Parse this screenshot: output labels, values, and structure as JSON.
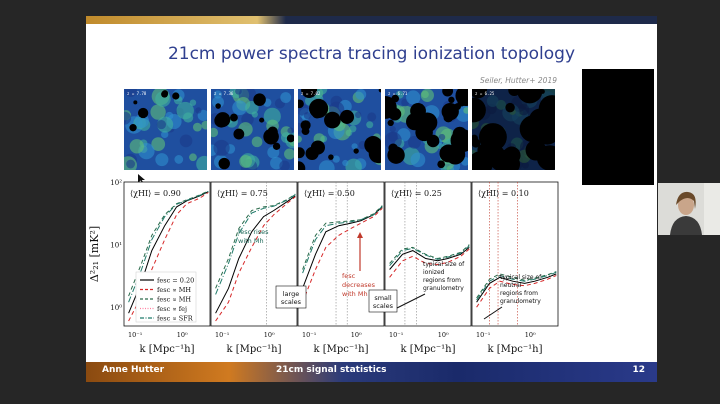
{
  "slide": {
    "title": "21cm power spectra tracing ionization topology",
    "citation": "Seiler, Hutter+ 2019",
    "footer": {
      "author": "Anne Hutter",
      "topic": "21cm signal statistics",
      "page": "12"
    }
  },
  "maps": [
    {
      "label": "z = 7.78"
    },
    {
      "label": "z = 7.36"
    },
    {
      "label": "z = 7.02"
    },
    {
      "label": "z = 6.71"
    },
    {
      "label": "z = 6.25"
    }
  ],
  "chart_data": {
    "type": "line",
    "ylabel": "Δ²₂₁ [mK²]",
    "xlabel": "k [Mpc⁻¹h]",
    "x_scale": "log",
    "y_scale": "log",
    "xlim": [
      0.1,
      3
    ],
    "ylim": [
      0.5,
      100
    ],
    "y_ticks": [
      "10²",
      "10¹",
      "10⁰"
    ],
    "x_ticks": [
      "10⁻¹",
      "10⁰"
    ],
    "legend": [
      {
        "label": "fesc = 0.20",
        "color": "#000000",
        "dash": "solid"
      },
      {
        "label": "fesc ∝ MH",
        "color": "#d62728",
        "dash": "dashed"
      },
      {
        "label": "fesc ∝ MH",
        "color": "#2a6a4a",
        "dash": "dashed"
      },
      {
        "label": "fesc ∝ fej",
        "color": "#ff7fa0",
        "dash": "dotted"
      },
      {
        "label": "fesc ∝ SFR",
        "color": "#1f7a6a",
        "dash": "dashdot"
      }
    ],
    "panels": [
      {
        "label": "⟨χHI⟩ = 0.90",
        "series": [
          {
            "color": "#000000",
            "dash": "",
            "x": [
              0.12,
              0.2,
              0.3,
              0.5,
              0.8,
              1.2,
              2,
              2.8
            ],
            "y": [
              0.8,
              2.5,
              8,
              20,
              40,
              50,
              60,
              70
            ]
          },
          {
            "color": "#d62728",
            "dash": "4,3",
            "x": [
              0.12,
              0.2,
              0.3,
              0.5,
              0.8,
              1.2,
              2,
              2.8
            ],
            "y": [
              0.6,
              1.5,
              4,
              12,
              30,
              45,
              55,
              68
            ]
          },
          {
            "color": "#2a6a4a",
            "dash": "4,3",
            "x": [
              0.12,
              0.2,
              0.3,
              0.5,
              0.8,
              1.2,
              2,
              2.8
            ],
            "y": [
              1.5,
              5,
              14,
              30,
              45,
              52,
              62,
              72
            ]
          },
          {
            "color": "#1f7a6a",
            "dash": "6,2,1,2",
            "x": [
              0.12,
              0.2,
              0.3,
              0.5,
              0.8,
              1.2,
              2,
              2.8
            ],
            "y": [
              1.2,
              4,
              12,
              28,
              44,
              51,
              61,
              71
            ]
          }
        ]
      },
      {
        "label": "⟨χHI⟩ = 0.75",
        "series": [
          {
            "color": "#000000",
            "dash": "",
            "x": [
              0.12,
              0.2,
              0.3,
              0.5,
              0.8,
              1.2,
              2,
              2.8
            ],
            "y": [
              0.8,
              2,
              6,
              16,
              28,
              35,
              48,
              60
            ]
          },
          {
            "color": "#d62728",
            "dash": "4,3",
            "x": [
              0.12,
              0.2,
              0.3,
              0.5,
              0.8,
              1.2,
              2,
              2.8
            ],
            "y": [
              0.6,
              1.2,
              3.5,
              9,
              20,
              30,
              45,
              58
            ]
          },
          {
            "color": "#2a6a4a",
            "dash": "4,3",
            "x": [
              0.12,
              0.2,
              0.3,
              0.5,
              0.8,
              1.2,
              2,
              2.8
            ],
            "y": [
              2,
              6,
              18,
              35,
              40,
              42,
              52,
              64
            ]
          },
          {
            "color": "#1f7a6a",
            "dash": "6,2,1,2",
            "x": [
              0.12,
              0.2,
              0.3,
              0.5,
              0.8,
              1.2,
              2,
              2.8
            ],
            "y": [
              1.6,
              5,
              15,
              32,
              38,
              41,
              51,
              63
            ]
          }
        ]
      },
      {
        "label": "⟨χHI⟩ = 0.50",
        "series": [
          {
            "color": "#000000",
            "dash": "",
            "x": [
              0.12,
              0.2,
              0.3,
              0.5,
              0.8,
              1.2,
              2,
              2.8
            ],
            "y": [
              2,
              7,
              16,
              20,
              22,
              24,
              30,
              40
            ]
          },
          {
            "color": "#d62728",
            "dash": "4,3",
            "x": [
              0.12,
              0.2,
              0.3,
              0.5,
              0.8,
              1.2,
              2,
              2.8
            ],
            "y": [
              1.2,
              4,
              9,
              14,
              18,
              22,
              28,
              38
            ]
          },
          {
            "color": "#2a6a4a",
            "dash": "4,3",
            "x": [
              0.12,
              0.2,
              0.3,
              0.5,
              0.8,
              1.2,
              2,
              2.8
            ],
            "y": [
              4,
              14,
              22,
              23,
              24,
              25,
              31,
              42
            ]
          },
          {
            "color": "#1f7a6a",
            "dash": "6,2,1,2",
            "x": [
              0.12,
              0.2,
              0.3,
              0.5,
              0.8,
              1.2,
              2,
              2.8
            ],
            "y": [
              3.5,
              12,
              20,
              22,
              23,
              25,
              30,
              41
            ]
          }
        ]
      },
      {
        "label": "⟨χHI⟩ = 0.25",
        "series": [
          {
            "color": "#000000",
            "dash": "",
            "x": [
              0.12,
              0.2,
              0.3,
              0.5,
              0.8,
              1.2,
              2,
              2.8
            ],
            "y": [
              4,
              7,
              8,
              6,
              5.5,
              6,
              7,
              9
            ]
          },
          {
            "color": "#d62728",
            "dash": "4,3",
            "x": [
              0.12,
              0.2,
              0.3,
              0.5,
              0.8,
              1.2,
              2,
              2.8
            ],
            "y": [
              3,
              5.5,
              6.5,
              5,
              4.8,
              5.2,
              6.5,
              8.5
            ]
          },
          {
            "color": "#2a6a4a",
            "dash": "4,3",
            "x": [
              0.12,
              0.2,
              0.3,
              0.5,
              0.8,
              1.2,
              2,
              2.8
            ],
            "y": [
              5,
              8.5,
              9,
              7,
              6,
              6.5,
              7.5,
              10
            ]
          },
          {
            "color": "#1f7a6a",
            "dash": "6,2,1,2",
            "x": [
              0.12,
              0.2,
              0.3,
              0.5,
              0.8,
              1.2,
              2,
              2.8
            ],
            "y": [
              4.6,
              8,
              8.7,
              6.8,
              5.8,
              6.3,
              7.3,
              9.6
            ]
          }
        ]
      },
      {
        "label": "⟨χHI⟩ = 0.10",
        "series": [
          {
            "color": "#000000",
            "dash": "",
            "x": [
              0.12,
              0.2,
              0.3,
              0.5,
              0.8,
              1.2,
              2,
              2.8
            ],
            "y": [
              1.2,
              2.4,
              3,
              2.6,
              2.4,
              2.6,
              3,
              3.4
            ]
          },
          {
            "color": "#d62728",
            "dash": "4,3",
            "x": [
              0.12,
              0.2,
              0.3,
              0.5,
              0.8,
              1.2,
              2,
              2.8
            ],
            "y": [
              1,
              2,
              2.6,
              2.3,
              2.2,
              2.4,
              2.8,
              3.2
            ]
          },
          {
            "color": "#2a6a4a",
            "dash": "4,3",
            "x": [
              0.12,
              0.2,
              0.3,
              0.5,
              0.8,
              1.2,
              2,
              2.8
            ],
            "y": [
              1.4,
              2.8,
              3.4,
              3,
              2.7,
              2.9,
              3.3,
              3.7
            ]
          },
          {
            "color": "#1f7a6a",
            "dash": "6,2,1,2",
            "x": [
              0.12,
              0.2,
              0.3,
              0.5,
              0.8,
              1.2,
              2,
              2.8
            ],
            "y": [
              1.3,
              2.6,
              3.2,
              2.8,
              2.6,
              2.8,
              3.2,
              3.6
            ]
          }
        ]
      }
    ],
    "annotations": {
      "p2_rise": "fesc rises with Mh",
      "p3_dec": "fesc decreases with Mh",
      "large": "large scales",
      "small": "small scales",
      "ionized": "typical size of ionized regions from granulometry",
      "neutral": "typical size of neutral regions from granulometry"
    }
  }
}
